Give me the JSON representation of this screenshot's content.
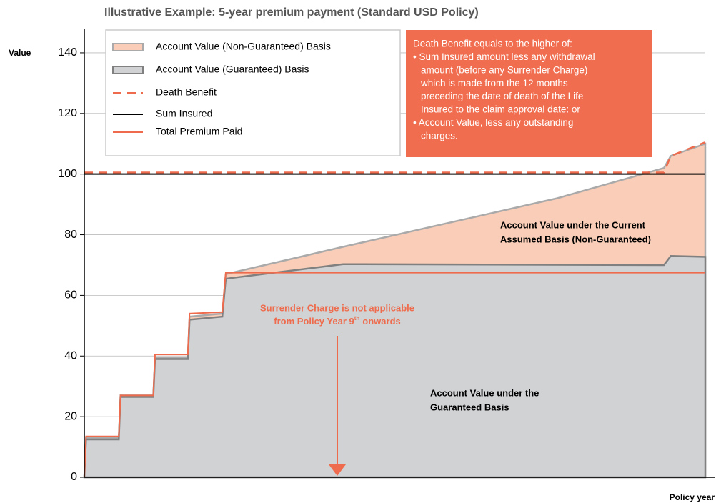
{
  "chart_data": {
    "type": "area",
    "title": "Illustrative Example: 5-year premium payment (Standard USD Policy)",
    "y_label": "Value",
    "x_label": "Policy year",
    "xlim": [
      0,
      18
    ],
    "ylim": [
      0,
      148
    ],
    "yticks": [
      0,
      20,
      40,
      60,
      80,
      100,
      120,
      140
    ],
    "grid": true,
    "legend": "upper left",
    "series": [
      {
        "name": "Account Value (Non-Guaranteed) Basis",
        "type": "area",
        "color": "#f9cdb7",
        "edge": "#aaaaaa",
        "x": [
          0,
          0.05,
          1,
          1.05,
          2,
          2.05,
          3,
          3.05,
          4,
          4.1,
          7.5,
          13.7,
          16.8,
          17,
          18
        ],
        "values": [
          0,
          13,
          13,
          27,
          27,
          39.5,
          39.5,
          53,
          54,
          67,
          76,
          92,
          102,
          106,
          110
        ]
      },
      {
        "name": "Account Value (Guaranteed) Basis",
        "type": "area",
        "color": "#d1d2d4",
        "edge": "#808080",
        "x": [
          0,
          0.05,
          1,
          1.05,
          2,
          2.05,
          3,
          3.05,
          4,
          4.1,
          7.5,
          16.8,
          17,
          18
        ],
        "values": [
          0,
          12.5,
          12.5,
          26.5,
          26.5,
          39,
          39,
          52,
          53,
          65.5,
          70.3,
          70,
          73,
          72.7
        ]
      },
      {
        "name": "Death Benefit",
        "type": "line",
        "dash": true,
        "color": "#ee6c4d",
        "x": [
          0,
          16.8,
          17,
          18
        ],
        "values": [
          100.5,
          100.5,
          106,
          110.5
        ]
      },
      {
        "name": "Sum Insured",
        "type": "line",
        "color": "#000000",
        "x": [
          0,
          18
        ],
        "values": [
          100,
          100
        ]
      },
      {
        "name": "Total Premium Paid",
        "type": "line",
        "color": "#ee6c4d",
        "x": [
          0,
          0.05,
          1,
          1.05,
          2,
          2.05,
          3,
          3.05,
          4,
          4.1,
          18
        ],
        "values": [
          0,
          13.5,
          13.5,
          27,
          27,
          40.5,
          40.5,
          54,
          54.5,
          67.5,
          67.5
        ]
      }
    ],
    "note_box": {
      "lines": [
        "Death Benefit equals to the higher of:",
        "• Sum Insured amount less any withdrawal",
        "amount (before any Surrender Charge)",
        "which is made from the 12 months",
        "preceding the date of death of the Life",
        "Insured to the claim approval date: or",
        "• Account Value, less any outstanding",
        "charges."
      ]
    },
    "annotations": {
      "non_guaranteed": [
        "Account Value under the Current",
        "Assumed Basis (Non-Guaranteed)"
      ],
      "guaranteed": [
        "Account Value under the",
        "Guaranteed Basis"
      ],
      "surrender_line1": "Surrender Charge is not applicable",
      "surrender_line2": "from Policy Year 9",
      "surrender_sup": "th",
      "surrender_line2_end": "onwards"
    }
  }
}
